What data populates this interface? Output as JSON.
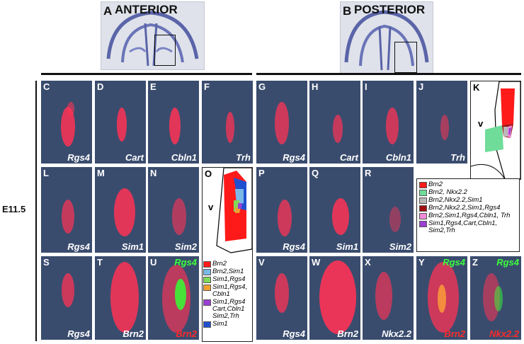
{
  "top": {
    "left": {
      "letter": "A",
      "title": "ANTERIOR"
    },
    "right": {
      "letter": "B",
      "title": "POSTERIOR"
    }
  },
  "stage": "E11.5",
  "panels": {
    "C": {
      "letter": "C",
      "gene": "Rgs4"
    },
    "D": {
      "letter": "D",
      "gene": "Cart"
    },
    "E": {
      "letter": "E",
      "gene": "Cbln1"
    },
    "F": {
      "letter": "F",
      "gene": "Trh"
    },
    "G": {
      "letter": "G",
      "gene": "Rgs4"
    },
    "H": {
      "letter": "H",
      "gene": "Cart"
    },
    "I": {
      "letter": "I",
      "gene": "Cbln1"
    },
    "J": {
      "letter": "J",
      "gene": "Trh"
    },
    "L": {
      "letter": "L",
      "gene": "Rgs4"
    },
    "M": {
      "letter": "M",
      "gene": "Sim1"
    },
    "N": {
      "letter": "N",
      "gene": "Sim2"
    },
    "P": {
      "letter": "P",
      "gene": "Rgs4"
    },
    "Q": {
      "letter": "Q",
      "gene": "Sim1"
    },
    "R": {
      "letter": "R",
      "gene": "Sim2"
    },
    "S": {
      "letter": "S",
      "gene": "Rgs4"
    },
    "T": {
      "letter": "T",
      "gene": "Brn2"
    },
    "U": {
      "letter": "U",
      "gene_top": "Rgs4",
      "gene": "Brn2"
    },
    "V": {
      "letter": "V",
      "gene": "Rgs4"
    },
    "W": {
      "letter": "W",
      "gene": "Brn2"
    },
    "X": {
      "letter": "X",
      "gene": "Nkx2.2"
    },
    "Y": {
      "letter": "Y",
      "gene_top": "Rgs4",
      "gene": "Brn2"
    },
    "Z": {
      "letter": "Z",
      "gene_top": "Rgs4",
      "gene": "Nkx2.2"
    }
  },
  "schematic_K": {
    "letter": "K",
    "ventricle": "v"
  },
  "schematic_O": {
    "letter": "O",
    "ventricle": "v"
  },
  "legend_K": [
    {
      "label": "Brn2",
      "color": "#ff1a1a"
    },
    {
      "label": "Brn2, Nkx2.2",
      "color": "#6fdc9a"
    },
    {
      "label": "Brn2,Nkx2.2,Sim1",
      "color": "#b8b8b8"
    },
    {
      "label": "Brn2,Nkx2.2,Sim1,Rgs4",
      "color": "#a01010"
    },
    {
      "label": "Brn2,Sim1,Rgs4,Cbln1, Trh",
      "color": "#f08ad8"
    },
    {
      "label": "Sim1,Rgs4,Cart,Cbln1, Sim2,Trh",
      "color": "#9b3fd4"
    }
  ],
  "legend_O": [
    {
      "label": "Brn2",
      "color": "#ff1a1a"
    },
    {
      "label": "Brn2,Sim1",
      "color": "#7ab8e8"
    },
    {
      "label": "Sim1,Rgs4",
      "color": "#7fd857"
    },
    {
      "label": "Sim1,Rgs4, Cbln1",
      "color": "#f0a030"
    },
    {
      "label": "Sim1,Rgs4 Cart,Cbln1 Sim2,Trh",
      "color": "#9b3fd4"
    },
    {
      "label": "Sim1",
      "color": "#2050d0"
    }
  ]
}
